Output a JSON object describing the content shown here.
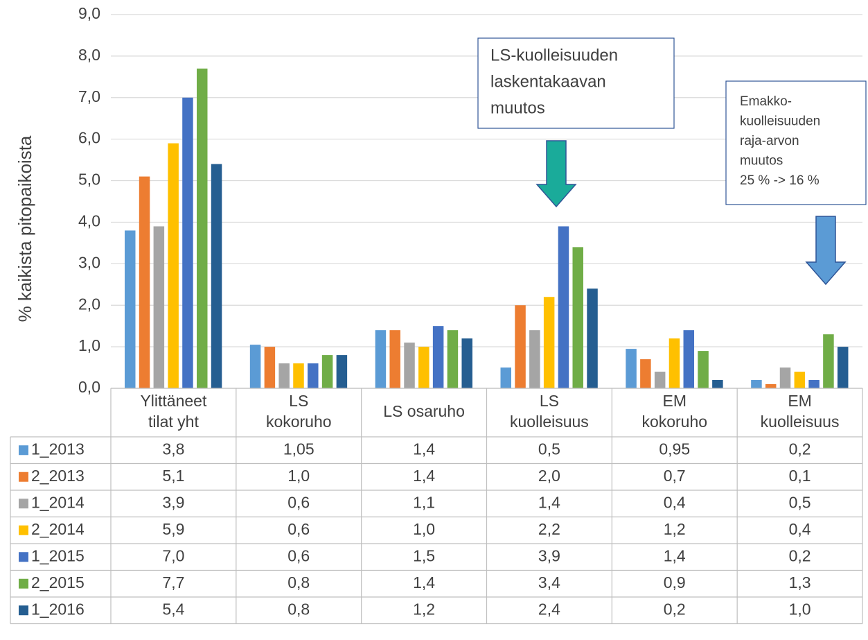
{
  "chart_data": {
    "type": "bar",
    "y_label": "% kaikista pitopaikoista",
    "categories": [
      [
        "Ylittäneet",
        "tilat yht"
      ],
      [
        "LS",
        "kokoruho"
      ],
      [
        "LS osaruho"
      ],
      [
        "LS",
        "kuolleisuus"
      ],
      [
        "EM",
        "kokoruho"
      ],
      [
        "EM",
        "kuolleisuus"
      ]
    ],
    "series": [
      {
        "name": "1_2013",
        "color": "#5b9bd5",
        "values": [
          3.8,
          1.05,
          1.4,
          0.5,
          0.95,
          0.2
        ],
        "value_labels": [
          "3,8",
          "1,05",
          "1,4",
          "0,5",
          "0,95",
          "0,2"
        ]
      },
      {
        "name": "2_2013",
        "color": "#ed7d31",
        "values": [
          5.1,
          1.0,
          1.4,
          2.0,
          0.7,
          0.1
        ],
        "value_labels": [
          "5,1",
          "1,0",
          "1,4",
          "2,0",
          "0,7",
          "0,1"
        ]
      },
      {
        "name": "1_2014",
        "color": "#a5a5a5",
        "values": [
          3.9,
          0.6,
          1.1,
          1.4,
          0.4,
          0.5
        ],
        "value_labels": [
          "3,9",
          "0,6",
          "1,1",
          "1,4",
          "0,4",
          "0,5"
        ]
      },
      {
        "name": "2_2014",
        "color": "#ffc000",
        "values": [
          5.9,
          0.6,
          1.0,
          2.2,
          1.2,
          0.4
        ],
        "value_labels": [
          "5,9",
          "0,6",
          "1,0",
          "2,2",
          "1,2",
          "0,4"
        ]
      },
      {
        "name": "1_2015",
        "color": "#4472c4",
        "values": [
          7.0,
          0.6,
          1.5,
          3.9,
          1.4,
          0.2
        ],
        "value_labels": [
          "7,0",
          "0,6",
          "1,5",
          "3,9",
          "1,4",
          "0,2"
        ]
      },
      {
        "name": "2_2015",
        "color": "#70ad47",
        "values": [
          7.7,
          0.8,
          1.4,
          3.4,
          0.9,
          1.3
        ],
        "value_labels": [
          "7,7",
          "0,8",
          "1,4",
          "3,4",
          "0,9",
          "1,3"
        ]
      },
      {
        "name": "1_2016",
        "color": "#255e91",
        "values": [
          5.4,
          0.8,
          1.2,
          2.4,
          0.2,
          1.0
        ],
        "value_labels": [
          "5,4",
          "0,8",
          "1,2",
          "2,4",
          "0,2",
          "1,0"
        ]
      }
    ],
    "ylim": [
      0,
      9
    ],
    "yticks": [
      {
        "value": 0,
        "label": "0,0"
      },
      {
        "value": 1,
        "label": "1,0"
      },
      {
        "value": 2,
        "label": "2,0"
      },
      {
        "value": 3,
        "label": "3,0"
      },
      {
        "value": 4,
        "label": "4,0"
      },
      {
        "value": 5,
        "label": "5,0"
      },
      {
        "value": 6,
        "label": "6,0"
      },
      {
        "value": 7,
        "label": "7,0"
      },
      {
        "value": 8,
        "label": "8,0"
      },
      {
        "value": 9,
        "label": "9,0"
      }
    ],
    "grid": true,
    "annotations": [
      {
        "lines": [
          "LS-kuolleisuuden",
          "laskentakaavan",
          "muutos"
        ],
        "color": "#1aab9a"
      },
      {
        "lines": [
          "Emakko-",
          "kuolleisuuden",
          "raja-arvon",
          "muutos",
          "25 % -> 16 %"
        ],
        "color": "#5b9bd5"
      }
    ]
  }
}
